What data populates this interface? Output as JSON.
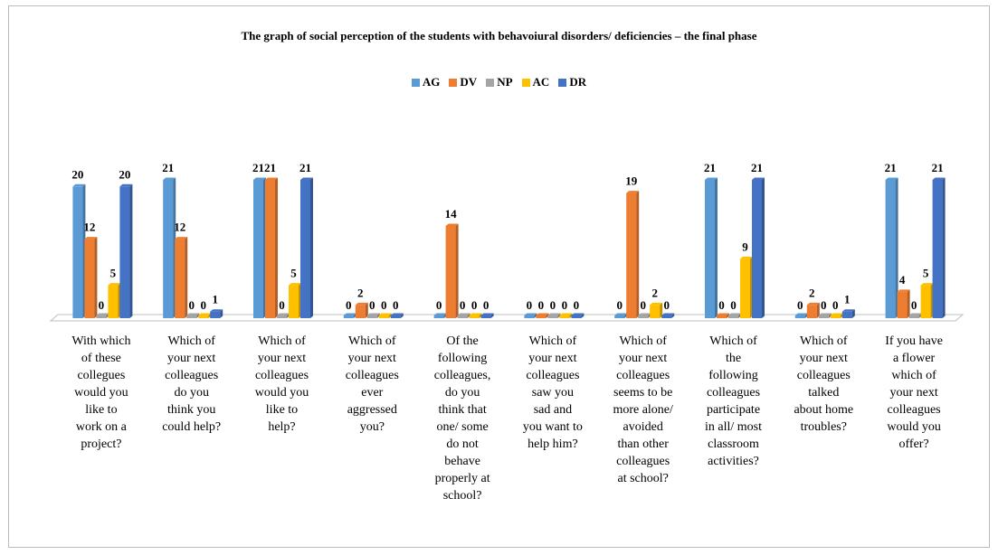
{
  "chart_data": {
    "type": "bar",
    "title": "The graph of social perception of the students with behavoiural disorders/ deficiencies – the final phase",
    "legend_position": "top",
    "categories": [
      "With which of these collegues would you like to work on a project?",
      "Which of your next colleagues do you think you could help?",
      "Which of your next colleagues would you like to help?",
      "Which of your next colleagues ever aggressed you?",
      "Of the following colleagues, do you think that one/ some do not behave properly at school?",
      "Which of your next colleagues saw you sad and you want to help him?",
      "Which of your next colleagues seems to be more alone/ avoided than other colleagues at school?",
      "Which of the following colleagues participate in all/ most classroom activities?",
      "Which of your next colleagues talked about home troubles?",
      "If you have a flower which of your next colleagues would you offer?"
    ],
    "category_lines": [
      [
        "With which",
        "of these",
        "collegues",
        "would you",
        "like to",
        "work on a",
        "project?"
      ],
      [
        "Which of",
        "your next",
        "colleagues",
        "do you",
        "think you",
        "could help?"
      ],
      [
        "Which of",
        "your next",
        "colleagues",
        "would you",
        "like to",
        "help?"
      ],
      [
        "Which of",
        "your next",
        "colleagues",
        "ever",
        "aggressed",
        "you?"
      ],
      [
        "Of the",
        "following",
        "colleagues,",
        "do you",
        "think that",
        "one/ some",
        "do not",
        "behave",
        "properly at",
        "school?"
      ],
      [
        "Which of",
        "your next",
        "colleagues",
        "saw you",
        "sad and",
        "you want to",
        "help him?"
      ],
      [
        "Which of",
        "your next",
        "colleagues",
        "seems to be",
        "more alone/",
        "avoided",
        "than other",
        "colleagues",
        "at school?"
      ],
      [
        "Which of",
        "the",
        "following",
        "colleagues",
        "participate",
        "in all/ most",
        "classroom",
        "activities?"
      ],
      [
        "Which of",
        "your next",
        "colleagues",
        "talked",
        "about home",
        "troubles?"
      ],
      [
        "If you have",
        "a flower",
        "which of",
        "your next",
        "colleagues",
        "would you",
        "offer?"
      ]
    ],
    "series": [
      {
        "name": "AG",
        "color": "#5b9bd5",
        "values": [
          20,
          21,
          21,
          0,
          0,
          0,
          0,
          21,
          0,
          21
        ]
      },
      {
        "name": "DV",
        "color": "#ed7d31",
        "values": [
          12,
          12,
          21,
          2,
          14,
          0,
          19,
          0,
          2,
          4
        ]
      },
      {
        "name": "NP",
        "color": "#a5a5a5",
        "values": [
          0,
          0,
          0,
          0,
          0,
          0,
          0,
          0,
          0,
          0
        ]
      },
      {
        "name": "AC",
        "color": "#ffc000",
        "values": [
          5,
          0,
          5,
          0,
          0,
          0,
          2,
          9,
          0,
          5
        ]
      },
      {
        "name": "DR",
        "color": "#4472c4",
        "values": [
          20,
          1,
          21,
          0,
          0,
          0,
          0,
          21,
          1,
          21
        ]
      }
    ],
    "ylim": [
      0,
      21
    ],
    "grid": false
  }
}
